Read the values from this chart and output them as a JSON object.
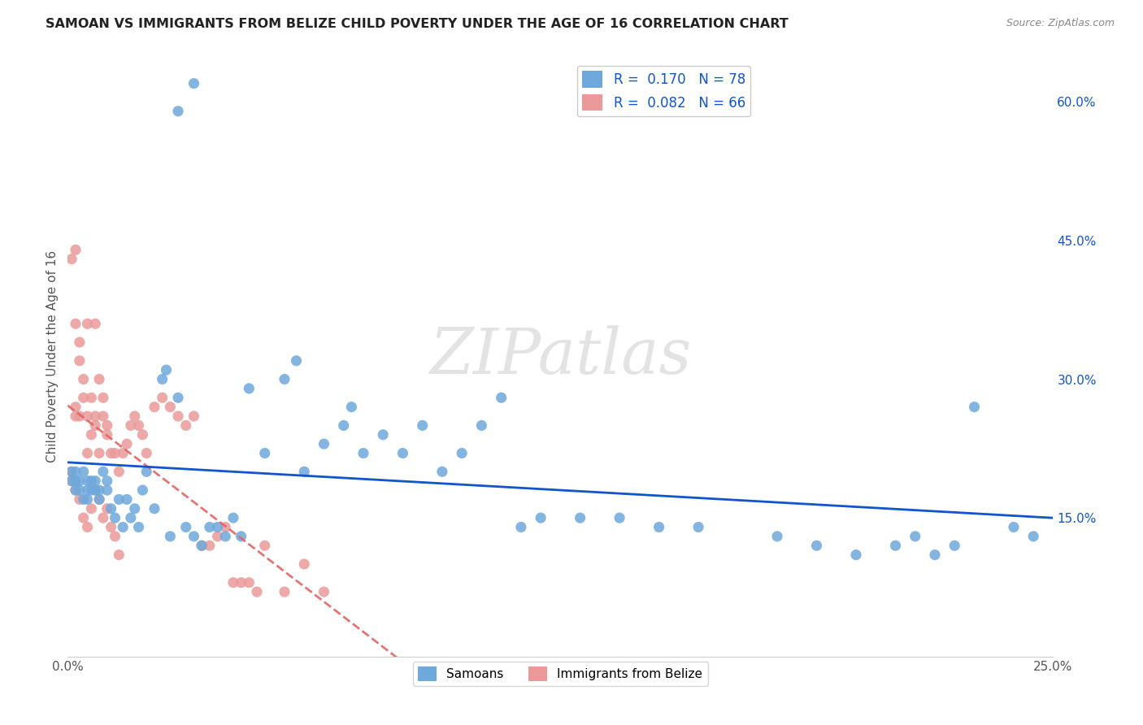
{
  "title": "SAMOAN VS IMMIGRANTS FROM BELIZE CHILD POVERTY UNDER THE AGE OF 16 CORRELATION CHART",
  "source": "Source: ZipAtlas.com",
  "ylabel": "Child Poverty Under the Age of 16",
  "legend_label1": "Samoans",
  "legend_label2": "Immigrants from Belize",
  "R1": 0.17,
  "N1": 78,
  "R2": 0.082,
  "N2": 66,
  "xlim": [
    0.0,
    0.25
  ],
  "ylim": [
    0.0,
    0.65
  ],
  "xticks": [
    0.0,
    0.05,
    0.1,
    0.15,
    0.2,
    0.25
  ],
  "xticklabels": [
    "0.0%",
    "",
    "",
    "",
    "",
    "25.0%"
  ],
  "yticks": [
    0.0,
    0.15,
    0.3,
    0.45,
    0.6
  ],
  "yticklabels_right": [
    "",
    "15.0%",
    "30.0%",
    "45.0%",
    "60.0%"
  ],
  "color_samoan": "#6fa8dc",
  "color_belize": "#ea9999",
  "color_line_samoan": "#1155cc",
  "color_line_belize": "#e06666",
  "watermark": "ZIPatlas",
  "background_color": "#ffffff",
  "grid_color": "#cccccc",
  "samoan_x": [
    0.001,
    0.001,
    0.002,
    0.002,
    0.002,
    0.003,
    0.003,
    0.004,
    0.004,
    0.005,
    0.005,
    0.005,
    0.006,
    0.006,
    0.007,
    0.007,
    0.008,
    0.008,
    0.009,
    0.01,
    0.01,
    0.011,
    0.012,
    0.013,
    0.014,
    0.015,
    0.016,
    0.017,
    0.018,
    0.019,
    0.02,
    0.022,
    0.024,
    0.025,
    0.026,
    0.028,
    0.03,
    0.032,
    0.034,
    0.036,
    0.038,
    0.04,
    0.042,
    0.044,
    0.046,
    0.05,
    0.055,
    0.058,
    0.06,
    0.065,
    0.07,
    0.072,
    0.075,
    0.08,
    0.085,
    0.09,
    0.095,
    0.1,
    0.105,
    0.11,
    0.115,
    0.12,
    0.13,
    0.14,
    0.15,
    0.16,
    0.18,
    0.19,
    0.2,
    0.21,
    0.215,
    0.22,
    0.225,
    0.23,
    0.24,
    0.245,
    0.028,
    0.032
  ],
  "samoan_y": [
    0.19,
    0.2,
    0.18,
    0.19,
    0.2,
    0.18,
    0.19,
    0.17,
    0.2,
    0.17,
    0.18,
    0.19,
    0.19,
    0.18,
    0.18,
    0.19,
    0.17,
    0.18,
    0.2,
    0.18,
    0.19,
    0.16,
    0.15,
    0.17,
    0.14,
    0.17,
    0.15,
    0.16,
    0.14,
    0.18,
    0.2,
    0.16,
    0.3,
    0.31,
    0.13,
    0.28,
    0.14,
    0.13,
    0.12,
    0.14,
    0.14,
    0.13,
    0.15,
    0.13,
    0.29,
    0.22,
    0.3,
    0.32,
    0.2,
    0.23,
    0.25,
    0.27,
    0.22,
    0.24,
    0.22,
    0.25,
    0.2,
    0.22,
    0.25,
    0.28,
    0.14,
    0.15,
    0.15,
    0.15,
    0.14,
    0.14,
    0.13,
    0.12,
    0.11,
    0.12,
    0.13,
    0.11,
    0.12,
    0.27,
    0.14,
    0.13,
    0.59,
    0.62
  ],
  "belize_x": [
    0.001,
    0.001,
    0.002,
    0.002,
    0.002,
    0.003,
    0.003,
    0.003,
    0.004,
    0.004,
    0.005,
    0.005,
    0.005,
    0.006,
    0.006,
    0.007,
    0.007,
    0.007,
    0.008,
    0.008,
    0.009,
    0.009,
    0.01,
    0.01,
    0.011,
    0.012,
    0.013,
    0.014,
    0.015,
    0.016,
    0.017,
    0.018,
    0.019,
    0.02,
    0.022,
    0.024,
    0.026,
    0.028,
    0.03,
    0.032,
    0.034,
    0.036,
    0.038,
    0.04,
    0.042,
    0.044,
    0.046,
    0.048,
    0.05,
    0.055,
    0.06,
    0.065,
    0.001,
    0.002,
    0.003,
    0.004,
    0.005,
    0.006,
    0.007,
    0.008,
    0.009,
    0.01,
    0.011,
    0.012,
    0.013,
    0.002
  ],
  "belize_y": [
    0.43,
    0.19,
    0.36,
    0.26,
    0.27,
    0.34,
    0.32,
    0.26,
    0.28,
    0.3,
    0.36,
    0.22,
    0.26,
    0.28,
    0.24,
    0.36,
    0.25,
    0.26,
    0.3,
    0.22,
    0.26,
    0.28,
    0.25,
    0.24,
    0.22,
    0.22,
    0.2,
    0.22,
    0.23,
    0.25,
    0.26,
    0.25,
    0.24,
    0.22,
    0.27,
    0.28,
    0.27,
    0.26,
    0.25,
    0.26,
    0.12,
    0.12,
    0.13,
    0.14,
    0.08,
    0.08,
    0.08,
    0.07,
    0.12,
    0.07,
    0.1,
    0.07,
    0.2,
    0.18,
    0.17,
    0.15,
    0.14,
    0.16,
    0.18,
    0.17,
    0.15,
    0.16,
    0.14,
    0.13,
    0.11,
    0.44
  ]
}
